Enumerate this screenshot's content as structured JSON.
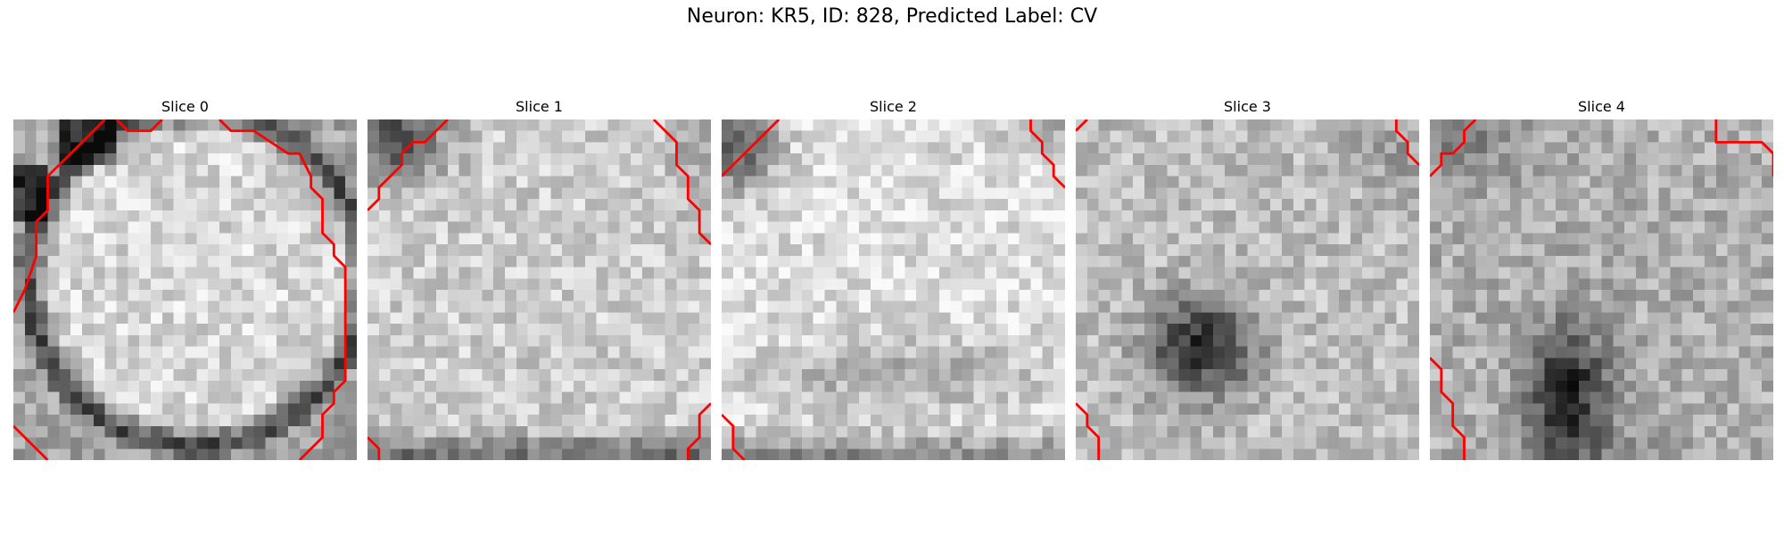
{
  "figure": {
    "title": "Neuron: KR5, ID: 828, Predicted Label: CV"
  },
  "slices": [
    {
      "title": "Slice 0"
    },
    {
      "title": "Slice 1"
    },
    {
      "title": "Slice 2"
    },
    {
      "title": "Slice 3"
    },
    {
      "title": "Slice 4"
    }
  ],
  "colors": {
    "contour": "#ff0000",
    "colormap": "grayscale"
  }
}
